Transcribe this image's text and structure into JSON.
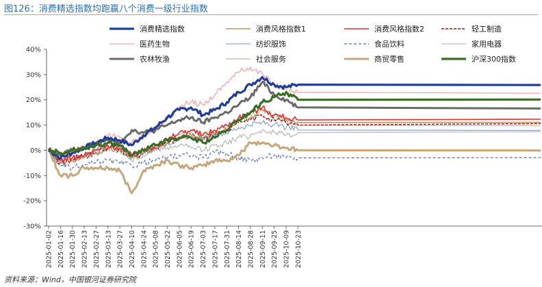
{
  "figure": {
    "title": "图126：消费精选指数均跑赢八个消费一级行业指数",
    "source": "资料来源：Wind，中国银河证券研究院"
  },
  "chart_data": {
    "type": "line",
    "title": "消费精选指数均跑赢八个消费一级行业指数",
    "xlabel": "",
    "ylabel": "",
    "ylim": [
      -30,
      40
    ],
    "yticks": [
      -30,
      -20,
      -10,
      0,
      10,
      20,
      30,
      40
    ],
    "ytick_format": "percent",
    "grid": false,
    "legend_position": "top",
    "x": [
      "2025-01-02",
      "2025-01-16",
      "2025-01-30",
      "2025-02-13",
      "2025-02-27",
      "2025-03-13",
      "2025-03-27",
      "2025-04-10",
      "2025-04-24",
      "2025-05-08",
      "2025-05-22",
      "2025-06-05",
      "2025-06-19",
      "2025-07-03",
      "2025-07-17",
      "2025-07-31",
      "2025-08-14",
      "2025-08-28",
      "2025-09-11",
      "2025-09-25",
      "2025-10-09",
      "2025-10-23"
    ],
    "series": [
      {
        "name": "消费精选指数",
        "color": "#1f3d99",
        "width": 3.2,
        "dash": "",
        "values": [
          0,
          -3,
          -1,
          1,
          3,
          5,
          4,
          2,
          6,
          9,
          13,
          16,
          17,
          14,
          16,
          19,
          23,
          26,
          29,
          26,
          25,
          26
        ]
      },
      {
        "name": "消费风格指数1",
        "color": "#b89468",
        "width": 1.6,
        "dash": "",
        "values": [
          0,
          -5,
          -4,
          -3,
          -1,
          1,
          0,
          -3,
          -1,
          1,
          3,
          5,
          6,
          5,
          7,
          8,
          12,
          13,
          16,
          14,
          12,
          11
        ]
      },
      {
        "name": "消费风格指数2",
        "color": "#e03030",
        "width": 1.6,
        "dash": "",
        "values": [
          0,
          -4,
          -3,
          -2,
          0,
          2,
          1,
          -2,
          0,
          2,
          4,
          7,
          8,
          6,
          8,
          10,
          13,
          15,
          17,
          14,
          13,
          12
        ]
      },
      {
        "name": "轻工制造",
        "color": "#a01010",
        "width": 1.5,
        "dash": "4,2",
        "values": [
          0,
          -5,
          -4,
          -3,
          -1,
          1,
          0,
          -3,
          -1,
          1,
          3,
          5,
          6,
          5,
          6,
          8,
          11,
          12,
          14,
          12,
          11,
          10
        ]
      },
      {
        "name": "医药生物",
        "color": "#f4a4a4",
        "width": 1.3,
        "dash": "",
        "values": [
          0,
          -3,
          -1,
          1,
          3,
          6,
          5,
          3,
          6,
          9,
          13,
          17,
          19,
          18,
          22,
          27,
          31,
          33,
          30,
          26,
          24,
          23
        ]
      },
      {
        "name": "纺织服饰",
        "color": "#8fa8d8",
        "width": 1.3,
        "dash": "",
        "values": [
          0,
          -4,
          -3,
          -2,
          0,
          2,
          1,
          -3,
          -1,
          1,
          3,
          4,
          5,
          4,
          6,
          7,
          9,
          10,
          11,
          10,
          9,
          8
        ]
      },
      {
        "name": "食品饮料",
        "color": "#4a6cc0",
        "width": 1.2,
        "dash": "4,3",
        "values": [
          0,
          -6,
          -7,
          -6,
          -5,
          -4,
          -5,
          -6,
          -5,
          -4,
          -3,
          -2,
          -2,
          -3,
          -1,
          -1,
          -3,
          -4,
          -3,
          -2,
          -3,
          -3
        ]
      },
      {
        "name": "家用电器",
        "color": "#bbbbbb",
        "width": 1.3,
        "dash": "",
        "values": [
          0,
          -4,
          -3,
          -2,
          -1,
          1,
          0,
          -4,
          -2,
          0,
          1,
          2,
          1,
          0,
          2,
          3,
          5,
          6,
          8,
          7,
          6,
          7
        ]
      },
      {
        "name": "农林牧渔",
        "color": "#6a6a6a",
        "width": 3.0,
        "dash": "",
        "values": [
          0,
          -2,
          0,
          1,
          3,
          4,
          3,
          8,
          7,
          8,
          10,
          12,
          13,
          11,
          13,
          15,
          18,
          21,
          27,
          22,
          20,
          17
        ]
      },
      {
        "name": "社会服务",
        "color": "#c8b090",
        "width": 1.0,
        "dash": "",
        "values": [
          0,
          -5,
          -4,
          -2,
          0,
          4,
          2,
          -2,
          0,
          2,
          4,
          6,
          7,
          6,
          7,
          9,
          12,
          14,
          16,
          13,
          11,
          10
        ]
      },
      {
        "name": "商贸零售",
        "color": "#c8a67c",
        "width": 3.0,
        "dash": "",
        "values": [
          0,
          -10,
          -10,
          -7,
          -7,
          -7,
          -8,
          -17,
          -8,
          -6,
          -4,
          -6,
          -7,
          -6,
          -4,
          -4,
          -2,
          3,
          3,
          2,
          1,
          0
        ]
      },
      {
        "name": "沪深300指数",
        "color": "#3a6e25",
        "width": 3.2,
        "dash": "",
        "values": [
          0,
          -1,
          0,
          1,
          2,
          3,
          2,
          -2,
          0,
          2,
          4,
          5,
          5,
          3,
          5,
          8,
          12,
          15,
          19,
          21,
          23,
          20
        ]
      }
    ]
  }
}
